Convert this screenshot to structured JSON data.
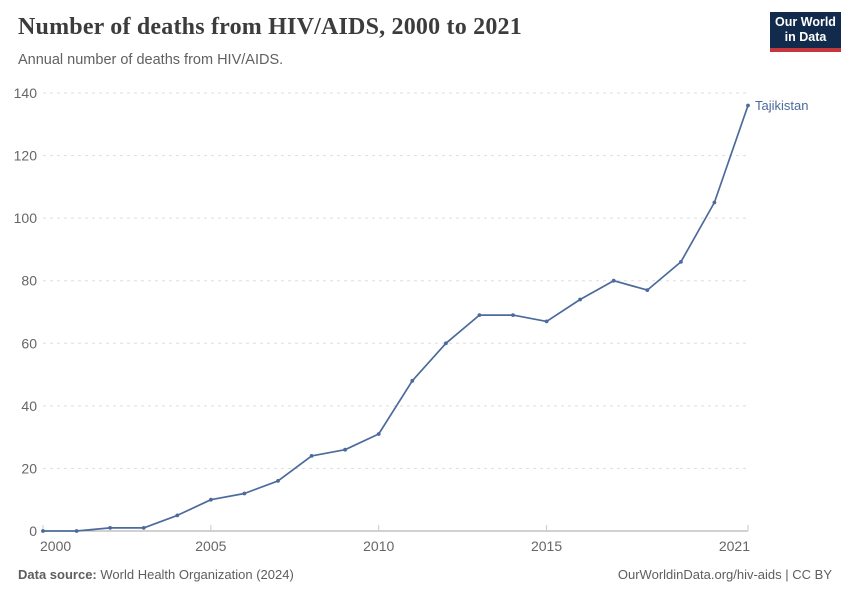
{
  "header": {
    "title": "Number of deaths from HIV/AIDS, 2000 to 2021",
    "subtitle": "Annual number of deaths from HIV/AIDS."
  },
  "logo": {
    "line1": "Our World",
    "line2": "in Data"
  },
  "chart_data": {
    "type": "line",
    "title": "Number of deaths from HIV/AIDS, 2000 to 2021",
    "subtitle": "Annual number of deaths from HIV/AIDS.",
    "xlim": [
      2000,
      2021
    ],
    "ylim": [
      0,
      140
    ],
    "yticks": [
      0,
      20,
      40,
      60,
      80,
      100,
      120,
      140
    ],
    "xticks": [
      2000,
      2005,
      2010,
      2015,
      2021
    ],
    "grid": "horizontal-dashed",
    "legend": "end-of-line-label",
    "series": [
      {
        "name": "Tajikistan",
        "color": "#4C6A9C",
        "years": [
          2000,
          2001,
          2002,
          2003,
          2004,
          2005,
          2006,
          2007,
          2008,
          2009,
          2010,
          2011,
          2012,
          2013,
          2014,
          2015,
          2016,
          2017,
          2018,
          2019,
          2020,
          2021
        ],
        "values": [
          0,
          0,
          1,
          1,
          5,
          10,
          12,
          16,
          24,
          26,
          31,
          48,
          60,
          69,
          69,
          67,
          74,
          80,
          77,
          86,
          105,
          136
        ]
      }
    ]
  },
  "footer": {
    "source_label": "Data source:",
    "source_text": "World Health Organization (2024)",
    "right_text": "OurWorldinData.org/hiv-aids | CC BY"
  },
  "colors": {
    "line": "#4C6A9C",
    "title_text": "#3c3c3c",
    "subtitle_text": "#616161",
    "axis_text": "#666666",
    "gridline": "#dddddd",
    "axis_line": "#a3a3a3",
    "tick_mark": "#c9c9c9",
    "footer_text": "#5e5e5e",
    "logo_bg": "#122b4d",
    "logo_bar": "#c5373b"
  }
}
